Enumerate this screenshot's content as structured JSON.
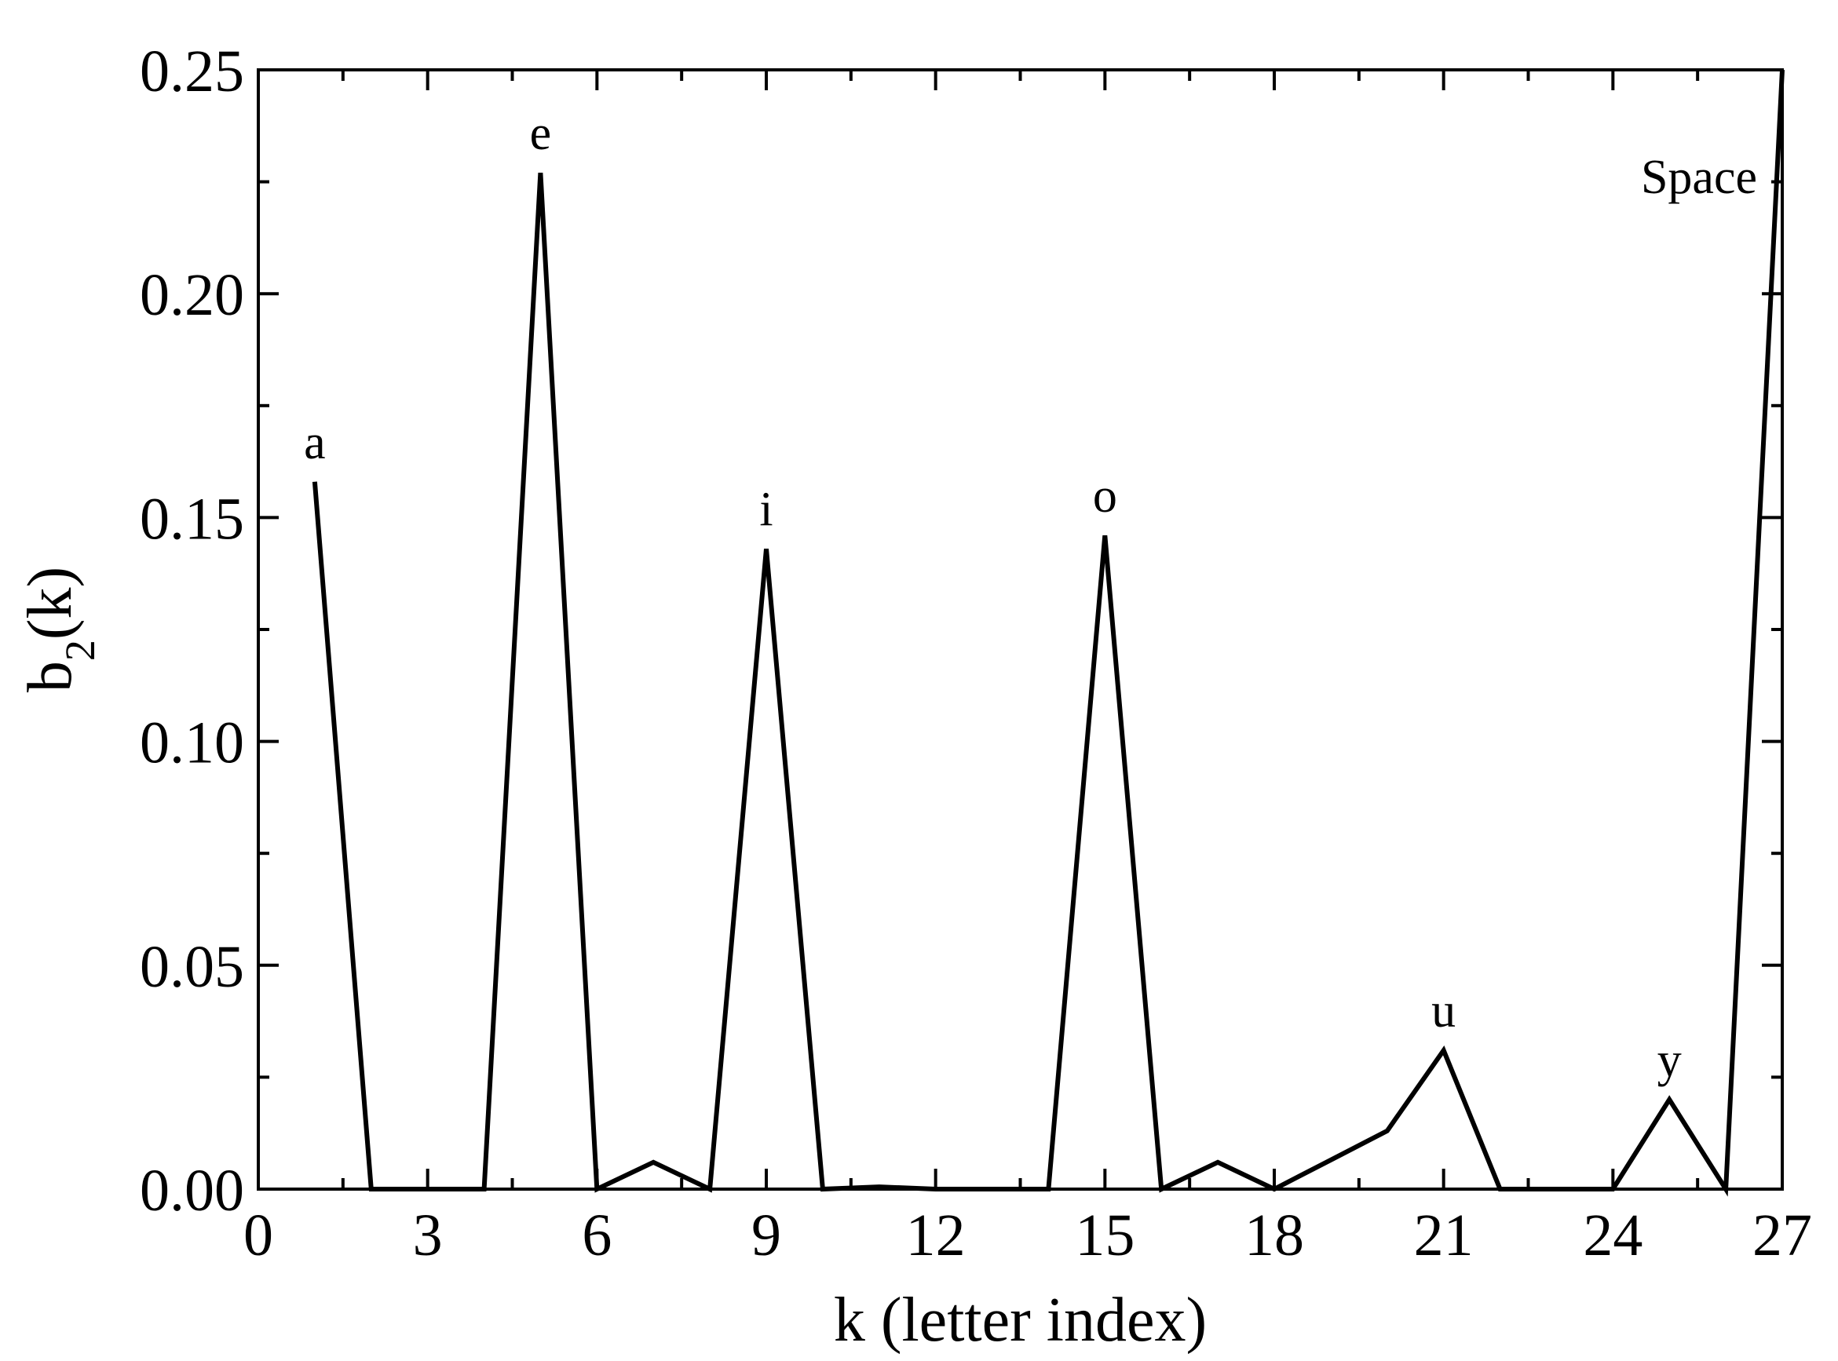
{
  "chart_data": {
    "type": "line",
    "title": "",
    "xlabel": "k (letter index)",
    "ylabel_main": "b",
    "ylabel_sub": "2",
    "ylabel_tail": "(k)",
    "xlim": [
      0,
      27
    ],
    "ylim": [
      0,
      0.25
    ],
    "x_major_ticks": [
      0,
      3,
      6,
      9,
      12,
      15,
      18,
      21,
      24,
      27
    ],
    "x_tick_labels": [
      "0",
      "3",
      "6",
      "9",
      "12",
      "15",
      "18",
      "21",
      "24",
      "27"
    ],
    "y_major_ticks": [
      0,
      0.05,
      0.1,
      0.15,
      0.2,
      0.25
    ],
    "y_tick_labels": [
      "0.00",
      "0.05",
      "0.10",
      "0.15",
      "0.20",
      "0.25"
    ],
    "grid": false,
    "legend": "none",
    "series": [
      {
        "x": [
          1,
          2,
          3,
          4,
          5,
          6,
          7,
          8,
          9,
          10,
          11,
          12,
          13,
          14,
          15,
          16,
          17,
          18,
          19,
          20,
          21,
          22,
          23,
          24,
          25,
          26,
          27
        ],
        "values": [
          0.158,
          0.0,
          0.0,
          0.0,
          0.227,
          0.0,
          0.006,
          0.0,
          0.143,
          0.0,
          0.0005,
          0.0,
          0.0,
          0.0,
          0.146,
          0.0,
          0.006,
          0.0,
          0.0065,
          0.013,
          0.031,
          0.0,
          0.0,
          0.0,
          0.02,
          0.0,
          0.25
        ],
        "color": "#000000"
      }
    ],
    "annotations": [
      {
        "text": "a",
        "x": 1,
        "y": 0.158
      },
      {
        "text": "e",
        "x": 5,
        "y": 0.227
      },
      {
        "text": "i",
        "x": 9,
        "y": 0.143
      },
      {
        "text": "o",
        "x": 15,
        "y": 0.146
      },
      {
        "text": "u",
        "x": 21,
        "y": 0.031
      },
      {
        "text": "y",
        "x": 25,
        "y": 0.02
      },
      {
        "text": "Space",
        "x": 27,
        "y": 0.25
      }
    ]
  }
}
